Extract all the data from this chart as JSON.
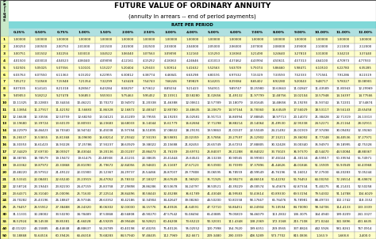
{
  "title": "FUTURE VALUE OF ORDINARY ANNUITY",
  "subtitle": "(annuity in arrears -- end of period payments)",
  "rate_header": "RATE PER PERIOD",
  "col_headers": [
    "0.25%",
    "0.50%",
    "0.75%",
    "1.00%",
    "1.50%",
    "2.00%",
    "2.50%",
    "3.00%",
    "4.00%",
    "5.00%",
    "6.00%",
    "7.00%",
    "8.00%",
    "9.00%",
    "10.00%",
    "11.00%",
    "12.00%"
  ],
  "row_labels": [
    "1",
    "2",
    "3",
    "4",
    "5",
    "6",
    "7",
    "8",
    "9",
    "10",
    "11",
    "12",
    "13",
    "14",
    "15",
    "16",
    "17",
    "18",
    "19",
    "20",
    "21",
    "22",
    "23",
    "24",
    "25",
    "30",
    "35",
    "40",
    "50"
  ],
  "table_data": [
    [
      1.0,
      1.0,
      1.0,
      1.0,
      1.0,
      1.0,
      1.0,
      1.0,
      1.0,
      1.0,
      1.0,
      1.0,
      1.0,
      1.0,
      1.0,
      1.0,
      1.0
    ],
    [
      2.0025,
      2.005,
      2.0075,
      2.01,
      2.015,
      2.02,
      2.025,
      2.03,
      2.04,
      2.05,
      2.06,
      2.07,
      2.08,
      2.09,
      2.1,
      2.11,
      2.12
    ],
    [
      3.00751,
      3.01502,
      3.02256,
      3.0301,
      3.04522,
      3.0604,
      3.07563,
      3.0909,
      3.1216,
      3.1525,
      3.1836,
      3.2149,
      3.2464,
      3.2781,
      3.31,
      3.3421,
      3.3744
    ],
    [
      4.01503,
      4.0301,
      4.04523,
      4.0604,
      4.0909,
      4.12161,
      4.15252,
      4.18363,
      4.24646,
      4.31013,
      4.37462,
      4.43994,
      4.50611,
      4.57313,
      4.641,
      4.70973,
      4.77933
    ],
    [
      5.02506,
      5.05025,
      5.07556,
      5.10101,
      5.15227,
      5.20404,
      5.25633,
      5.30914,
      5.41632,
      5.52563,
      5.63709,
      5.75074,
      5.8666,
      5.98471,
      6.1051,
      6.2278,
      6.35285
    ],
    [
      6.03763,
      6.0755,
      6.11363,
      6.15202,
      6.22955,
      6.30812,
      6.38774,
      6.46841,
      6.63298,
      6.80191,
      6.97532,
      7.15329,
      7.33593,
      7.52333,
      7.71561,
      7.91286,
      8.11519
    ],
    [
      7.05272,
      7.10568,
      7.15948,
      7.21354,
      7.32299,
      7.43428,
      7.54743,
      7.66246,
      7.89829,
      8.14201,
      8.39384,
      8.65402,
      8.9228,
      9.20043,
      9.48717,
      9.78327,
      10.08901
    ],
    [
      8.07035,
      8.14141,
      8.21318,
      8.28567,
      8.43284,
      8.58297,
      8.73612,
      8.89234,
      9.21423,
      9.54911,
      9.89747,
      10.2598,
      10.63663,
      11.02847,
      11.43589,
      11.85943,
      12.29969
    ],
    [
      9.09053,
      9.18212,
      9.27478,
      9.36853,
      9.55933,
      9.75463,
      9.95452,
      10.15911,
      10.5828,
      11.02656,
      11.49132,
      11.97799,
      12.48756,
      13.02104,
      13.57948,
      14.16397,
      14.77566
    ],
    [
      10.11325,
      10.22803,
      10.34434,
      10.46221,
      10.70272,
      10.94972,
      11.20338,
      11.46388,
      12.00611,
      12.57789,
      13.18079,
      13.81645,
      14.48656,
      15.19293,
      15.93742,
      16.72201,
      17.54874
    ],
    [
      11.13854,
      11.27917,
      11.42192,
      11.56683,
      11.86328,
      12.16872,
      12.48347,
      12.8078,
      13.48635,
      14.20679,
      14.97164,
      15.7836,
      16.64549,
      17.56029,
      18.53117,
      19.56143,
      20.65458
    ],
    [
      12.16638,
      12.33556,
      12.50759,
      12.6825,
      13.04121,
      13.41209,
      13.79555,
      14.19203,
      15.02581,
      15.91713,
      16.86994,
      17.88845,
      18.97713,
      20.14072,
      21.38428,
      22.71319,
      24.13313
    ],
    [
      13.1968,
      13.39724,
      13.60139,
      13.80933,
      14.23683,
      14.68033,
      15.14044,
      15.61779,
      16.62684,
      17.71298,
      18.88214,
      20.14064,
      21.4953,
      22.95338,
      24.52271,
      26.21164,
      28.02911
    ],
    [
      14.22979,
      14.46423,
      14.7034,
      14.94742,
      15.45038,
      15.97394,
      16.51895,
      17.08632,
      18.29191,
      19.59863,
      21.01507,
      22.55049,
      24.21492,
      26.01919,
      27.97498,
      30.09492,
      32.3926
    ],
    [
      15.26537,
      15.53655,
      15.81368,
      16.0969,
      16.68214,
      17.29342,
      17.93193,
      18.59891,
      20.02359,
      21.57856,
      23.27597,
      25.12902,
      27.15211,
      29.36092,
      31.77248,
      34.40536,
      37.27971
    ],
    [
      16.30353,
      16.61423,
      16.93228,
      17.25786,
      17.93237,
      18.63929,
      19.38022,
      20.15688,
      21.82453,
      23.65749,
      25.67253,
      27.88805,
      30.32428,
      33.0034,
      35.94973,
      39.18995,
      42.75328
    ],
    [
      17.34429,
      17.6973,
      18.05927,
      18.43044,
      19.20136,
      20.01207,
      20.86473,
      21.76159,
      23.69751,
      25.84037,
      28.21288,
      30.84022,
      33.75023,
      36.9737,
      40.5447,
      44.50084,
      48.88367
    ],
    [
      18.38765,
      18.78579,
      19.19472,
      19.61475,
      20.48938,
      21.41231,
      22.38635,
      23.41444,
      25.64541,
      28.13238,
      30.90565,
      33.99903,
      37.45024,
      41.30134,
      45.59917,
      50.39594,
      55.74971
    ],
    [
      19.43362,
      19.87972,
      20.33868,
      20.8109,
      21.79672,
      22.84056,
      23.94601,
      25.11687,
      27.67123,
      30.539,
      33.75999,
      37.37896,
      41.44626,
      46.01846,
      51.15909,
      56.93949,
      63.43968
    ],
    [
      20.4822,
      20.97912,
      21.49122,
      22.019,
      23.12367,
      24.29737,
      25.54466,
      26.87037,
      29.77808,
      33.06595,
      36.78559,
      40.99549,
      45.76196,
      51.16012,
      57.275,
      64.20283,
      72.05244
    ],
    [
      21.53341,
      22.08401,
      22.6524,
      23.23919,
      24.47052,
      25.78332,
      27.18327,
      28.67649,
      31.9692,
      35.71925,
      39.99273,
      44.86518,
      50.42292,
      56.76453,
      64.0025,
      72.26514,
      81.69874
    ],
    [
      22.58724,
      23.19443,
      23.8223,
      24.47159,
      25.83758,
      27.29898,
      28.86286,
      30.53678,
      34.24797,
      38.50521,
      43.39229,
      49.00574,
      55.45676,
      62.87334,
      71.40275,
      81.21431,
      92.50258
    ],
    [
      23.64371,
      24.3104,
      25.00096,
      25.7163,
      27.22514,
      28.84496,
      30.58443,
      32.45288,
      36.61789,
      41.43048,
      46.99583,
      53.43614,
      60.8933,
      69.53194,
      79.54302,
      91.14788,
      104.6029
    ],
    [
      24.70282,
      25.43196,
      26.18847,
      26.97346,
      28.63352,
      30.42186,
      32.34904,
      34.42647,
      39.0826,
      44.502,
      50.81558,
      58.17667,
      66.76476,
      76.78981,
      88.49733,
      102.1742,
      118.1552
    ],
    [
      25.76457,
      26.55912,
      27.38488,
      28.2432,
      30.06302,
      32.0303,
      34.15776,
      36.45926,
      41.64591,
      47.7271,
      54.86451,
      63.24904,
      73.10594,
      84.7009,
      98.34706,
      114.4133,
      133.3339
    ],
    [
      31.11331,
      32.28002,
      33.5029,
      34.78489,
      37.53868,
      40.56808,
      43.9027,
      47.57542,
      56.08494,
      66.43885,
      79.05819,
      94.46079,
      113.2832,
      136.3075,
      164.494,
      199.0209,
      241.3327
    ],
    [
      36.52924,
      38.14538,
      39.85381,
      41.66028,
      45.59209,
      49.99448,
      54.92821,
      60.46208,
      73.65222,
      90.32031,
      111.4348,
      138.2369,
      172.3168,
      215.7108,
      271.0244,
      341.5896,
      431.6635
    ],
    [
      42.0132,
      44.15885,
      46.44648,
      48.88637,
      54.26789,
      60.40198,
      67.40255,
      75.40126,
      95.02552,
      120.7998,
      154.762,
      199.6351,
      259.0565,
      337.8824,
      442.5926,
      581.8261,
      767.0914
    ],
    [
      53.18868,
      56.64516,
      60.39426,
      64.46318,
      73.68283,
      84.5794,
      97.48435,
      112.7969,
      152.6671,
      209.348,
      290.3359,
      406.5289,
      573.7702,
      815.0836,
      1163.909,
      1668.771,
      2400.018
    ]
  ],
  "period_letters": [
    "P",
    "e",
    "r",
    "i",
    "o",
    "d",
    "s"
  ],
  "title_bg": "#ffffff",
  "period_col_bg": "#c8e8c8",
  "rate_header_bg": "#80d8d8",
  "col_header_bg": "#b0e0e0",
  "row_odd_bg": "#ffffcc",
  "row_even_bg": "#ffffff",
  "period_cell_bg": "#ffff99",
  "grid_color": "#aaaaaa",
  "title_fontsize": 6.5,
  "subtitle_fontsize": 5.0,
  "header_fontsize": 3.8,
  "col_header_fontsize": 3.2,
  "cell_fontsize": 2.8,
  "period_num_fontsize": 3.2
}
